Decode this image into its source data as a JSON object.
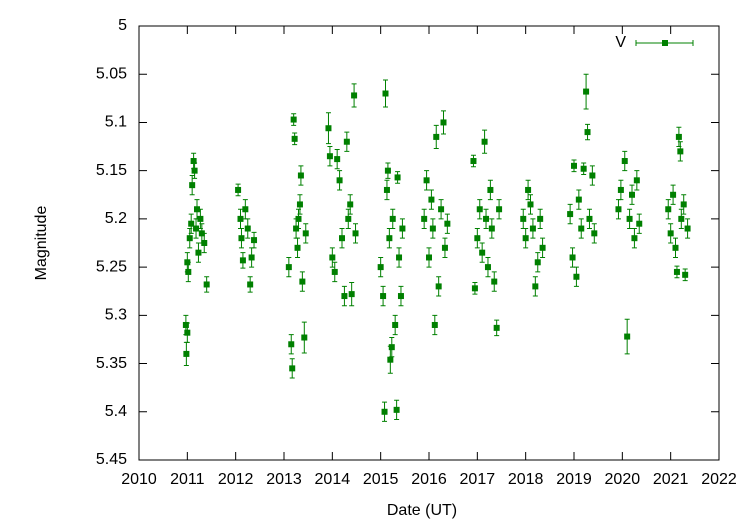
{
  "chart_data": {
    "type": "scatter",
    "xlabel": "Date (UT)",
    "ylabel": "Magnitude",
    "xlim": [
      2010,
      2022
    ],
    "xticks": [
      2010,
      2011,
      2012,
      2013,
      2014,
      2015,
      2016,
      2017,
      2018,
      2019,
      2020,
      2021,
      2022
    ],
    "ylim": [
      5,
      5.45
    ],
    "y_inverted": true,
    "yticks": [
      5,
      5.05,
      5.1,
      5.15,
      5.2,
      5.25,
      5.3,
      5.35,
      5.4,
      5.45
    ],
    "legend": "top-right",
    "grid": false,
    "series": [
      {
        "name": "V",
        "color": "#008000",
        "x": [
          2010.97,
          2010.98,
          2011.0,
          2011.0,
          2011.02,
          2011.05,
          2011.08,
          2011.1,
          2011.13,
          2011.15,
          2011.18,
          2011.2,
          2011.23,
          2011.27,
          2011.3,
          2011.35,
          2011.4,
          2012.05,
          2012.1,
          2012.12,
          2012.15,
          2012.2,
          2012.25,
          2012.3,
          2012.33,
          2012.38,
          2013.1,
          2013.15,
          2013.17,
          2013.2,
          2013.22,
          2013.25,
          2013.28,
          2013.3,
          2013.33,
          2013.35,
          2013.38,
          2013.42,
          2013.45,
          2013.92,
          2013.95,
          2014.0,
          2014.05,
          2014.1,
          2014.15,
          2014.2,
          2014.25,
          2014.3,
          2014.33,
          2014.37,
          2014.4,
          2014.45,
          2014.48,
          2015.0,
          2015.05,
          2015.08,
          2015.1,
          2015.13,
          2015.15,
          2015.18,
          2015.2,
          2015.23,
          2015.25,
          2015.3,
          2015.33,
          2015.35,
          2015.38,
          2015.42,
          2015.45,
          2015.9,
          2015.95,
          2016.0,
          2016.05,
          2016.08,
          2016.12,
          2016.15,
          2016.2,
          2016.25,
          2016.3,
          2016.33,
          2016.38,
          2016.92,
          2016.95,
          2017.0,
          2017.05,
          2017.1,
          2017.15,
          2017.18,
          2017.22,
          2017.27,
          2017.3,
          2017.35,
          2017.4,
          2017.45,
          2017.95,
          2018.0,
          2018.05,
          2018.1,
          2018.15,
          2018.2,
          2018.25,
          2018.3,
          2018.35,
          2018.92,
          2018.97,
          2019.0,
          2019.05,
          2019.1,
          2019.15,
          2019.2,
          2019.25,
          2019.28,
          2019.32,
          2019.38,
          2019.42,
          2019.92,
          2019.97,
          2020.05,
          2020.1,
          2020.15,
          2020.2,
          2020.25,
          2020.3,
          2020.35,
          2020.95,
          2021.0,
          2021.05,
          2021.1,
          2021.13,
          2021.17,
          2021.2,
          2021.22,
          2021.27,
          2021.3,
          2021.35
        ],
        "values": [
          5.31,
          5.34,
          5.318,
          5.245,
          5.255,
          5.22,
          5.205,
          5.165,
          5.14,
          5.15,
          5.21,
          5.19,
          5.235,
          5.2,
          5.215,
          5.225,
          5.268,
          5.17,
          5.2,
          5.22,
          5.243,
          5.19,
          5.21,
          5.268,
          5.24,
          5.222,
          5.25,
          5.33,
          5.355,
          5.097,
          5.117,
          5.21,
          5.23,
          5.2,
          5.185,
          5.155,
          5.265,
          5.323,
          5.215,
          5.106,
          5.135,
          5.24,
          5.255,
          5.138,
          5.16,
          5.22,
          5.28,
          5.12,
          5.2,
          5.185,
          5.278,
          5.072,
          5.215,
          5.25,
          5.28,
          5.4,
          5.07,
          5.17,
          5.15,
          5.22,
          5.346,
          5.333,
          5.2,
          5.31,
          5.398,
          5.157,
          5.24,
          5.28,
          5.21,
          5.2,
          5.16,
          5.24,
          5.18,
          5.21,
          5.31,
          5.115,
          5.27,
          5.19,
          5.1,
          5.23,
          5.205,
          5.14,
          5.272,
          5.22,
          5.19,
          5.235,
          5.12,
          5.2,
          5.25,
          5.17,
          5.21,
          5.265,
          5.313,
          5.19,
          5.2,
          5.22,
          5.17,
          5.185,
          5.21,
          5.27,
          5.245,
          5.2,
          5.23,
          5.195,
          5.24,
          5.145,
          5.26,
          5.18,
          5.21,
          5.148,
          5.068,
          5.11,
          5.2,
          5.155,
          5.215,
          5.19,
          5.17,
          5.14,
          5.322,
          5.2,
          5.175,
          5.22,
          5.16,
          5.205,
          5.19,
          5.215,
          5.175,
          5.23,
          5.255,
          5.115,
          5.13,
          5.2,
          5.185,
          5.258,
          5.21
        ],
        "errors": [
          0.01,
          0.012,
          0.01,
          0.01,
          0.01,
          0.01,
          0.01,
          0.01,
          0.008,
          0.008,
          0.01,
          0.01,
          0.01,
          0.01,
          0.01,
          0.01,
          0.008,
          0.006,
          0.01,
          0.01,
          0.008,
          0.01,
          0.01,
          0.008,
          0.01,
          0.008,
          0.01,
          0.01,
          0.01,
          0.006,
          0.006,
          0.01,
          0.01,
          0.01,
          0.01,
          0.01,
          0.01,
          0.016,
          0.01,
          0.016,
          0.01,
          0.01,
          0.01,
          0.01,
          0.01,
          0.01,
          0.01,
          0.01,
          0.01,
          0.01,
          0.012,
          0.012,
          0.01,
          0.01,
          0.01,
          0.01,
          0.014,
          0.01,
          0.008,
          0.01,
          0.014,
          0.01,
          0.01,
          0.01,
          0.01,
          0.006,
          0.01,
          0.01,
          0.01,
          0.01,
          0.01,
          0.01,
          0.01,
          0.01,
          0.01,
          0.012,
          0.01,
          0.01,
          0.012,
          0.01,
          0.01,
          0.006,
          0.006,
          0.01,
          0.01,
          0.01,
          0.012,
          0.01,
          0.01,
          0.01,
          0.01,
          0.01,
          0.008,
          0.01,
          0.01,
          0.01,
          0.01,
          0.01,
          0.01,
          0.01,
          0.01,
          0.01,
          0.01,
          0.01,
          0.01,
          0.006,
          0.01,
          0.01,
          0.01,
          0.006,
          0.018,
          0.008,
          0.01,
          0.01,
          0.01,
          0.01,
          0.01,
          0.01,
          0.018,
          0.01,
          0.01,
          0.01,
          0.01,
          0.01,
          0.01,
          0.01,
          0.01,
          0.01,
          0.006,
          0.01,
          0.01,
          0.01,
          0.01,
          0.006,
          0.01
        ]
      }
    ]
  }
}
